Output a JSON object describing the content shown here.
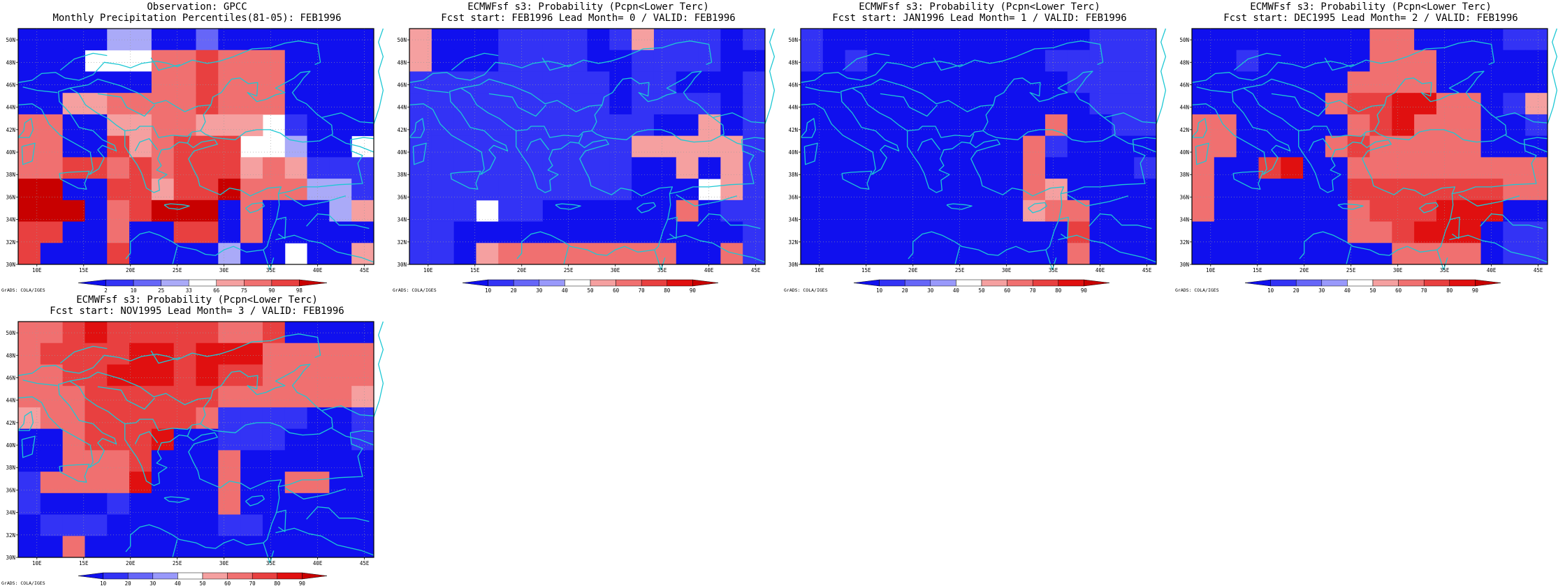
{
  "palette": {
    "prob": {
      "levels": [
        "10",
        "20",
        "30",
        "40",
        "50",
        "60",
        "70",
        "80",
        "90"
      ],
      "colors": [
        "#1010ee",
        "#3333f5",
        "#6666f8",
        "#9999fb",
        "#ffffff",
        "#f5a0a0",
        "#f07070",
        "#e84040",
        "#e01010",
        "#c80000"
      ]
    },
    "pct": {
      "levels": [
        "2",
        "10",
        "25",
        "33",
        "66",
        "75",
        "90",
        "98"
      ],
      "colors": [
        "#1010ee",
        "#3333f5",
        "#6666f8",
        "#aaaaf8",
        "#ffffff",
        "#f5a0a0",
        "#f07070",
        "#e84040",
        "#c80000"
      ]
    }
  },
  "axes": {
    "lon_labels": [
      "10E",
      "15E",
      "20E",
      "25E",
      "30E",
      "35E",
      "40E",
      "45E"
    ],
    "lat_labels": [
      "30N",
      "32N",
      "34N",
      "36N",
      "38N",
      "40N",
      "42N",
      "44N",
      "46N",
      "48N",
      "50N"
    ]
  },
  "credit": "GrADS: COLA/IGES",
  "panels": [
    {
      "title1": "Observation: GPCC",
      "title2": "Monthly Precipitation Percentiles(81-05): FEB1996",
      "palette": "pct",
      "grid": [
        "0000330020000000",
        "0004446676660000",
        "0000006676660000",
        "0055666676660000",
        "6600556655541000",
        "6600756777443004",
        "6677676777565111",
        "8800775778666331",
        "8880678880600035",
        "7700600770600000",
        "7000700003004005"
      ]
    },
    {
      "title1": "ECMWFsf s3: Probability (Pcpn<Lower Terc)",
      "title2": "Fcst start: FEB1996  Lead Month= 0 / VALID: FEB1996",
      "palette": "prob",
      "grid": [
        "5000111101511101",
        "5000111100111100",
        "1111111110110001",
        "1111111110111101",
        "1111111111100501",
        "1111111111555551",
        "1111111111005051",
        "1111111111000451",
        "1114110000006011",
        "1100000000000001",
        "1105666666660061"
      ]
    },
    {
      "title1": "ECMWFsf s3: Probability (Pcpn<Lower Terc)",
      "title2": "Fcst start: JAN1996  Lead Month= 1 / VALID: FEB1996",
      "palette": "prob",
      "grid": [
        "1000000000000111",
        "1010000000011111",
        "0000000000001111",
        "0000000000000111",
        "0000000000060011",
        "0000000000610000",
        "0000000000600001",
        "0000000000650000",
        "0000000000566000",
        "0000000000007000",
        "0000000000006000"
      ]
    },
    {
      "title1": "ECMWFsf s3: Probability (Pcpn<Lower Terc)",
      "title2": "Fcst start: DEC1995  Lead Month= 2 / VALID: FEB1996",
      "palette": "prob",
      "grid": [
        "0000000066000011",
        "0010000066600000",
        "0000000666600000",
        "0000006778866015",
        "6600000678666001",
        "6600006766666000",
        "6007800666666666",
        "6000000777777766",
        "6000000677788800",
        "0000000667888011",
        "0000000006666011"
      ]
    },
    {
      "title1": "ECMWFsf s3: Probability (Pcpn<Lower Terc)",
      "title2": "Fcst start: NOV1995  Lead Month= 3 / VALID: FEB1996",
      "palette": "prob",
      "grid": [
        "6678777776670000",
        "6777788788866666",
        "6677888787766666",
        "6667777776666665",
        "5667777761111001",
        "0067778001110001",
        "0066670006000000",
        "1666680006006600",
        "1000100006000000",
        "0111000001100000",
        "0060000000000000"
      ]
    }
  ]
}
